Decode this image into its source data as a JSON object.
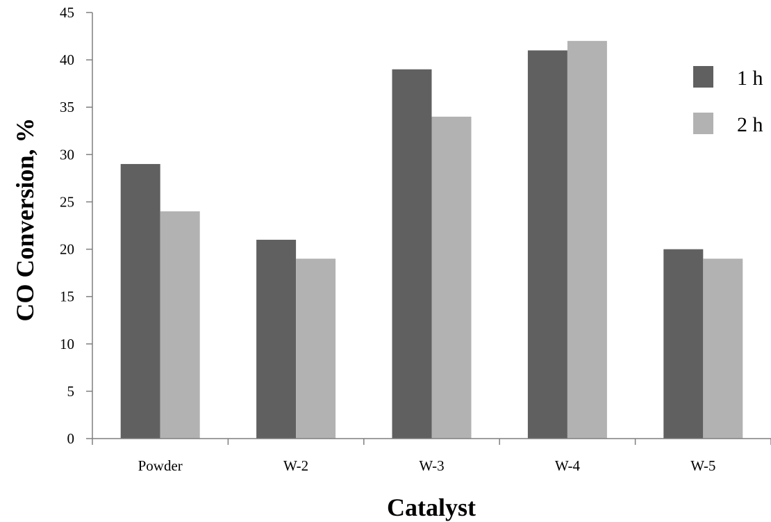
{
  "chart_data": {
    "type": "bar",
    "title": "",
    "xlabel": "Catalyst",
    "ylabel": "CO Conversion, %",
    "categories": [
      "Powder",
      "W-2",
      "W-3",
      "W-4",
      "W-5"
    ],
    "ylim": [
      0,
      45
    ],
    "yticks": [
      "0",
      "5",
      "10",
      "15",
      "20",
      "25",
      "30",
      "35",
      "40",
      "45"
    ],
    "grid": false,
    "legend_position": "top-right",
    "series": [
      {
        "name": "1 h",
        "color": "#606060",
        "values": [
          29,
          21,
          39,
          41,
          20
        ]
      },
      {
        "name": "2 h",
        "color": "#b2b2b2",
        "values": [
          24,
          19,
          34,
          42,
          19
        ]
      }
    ]
  }
}
